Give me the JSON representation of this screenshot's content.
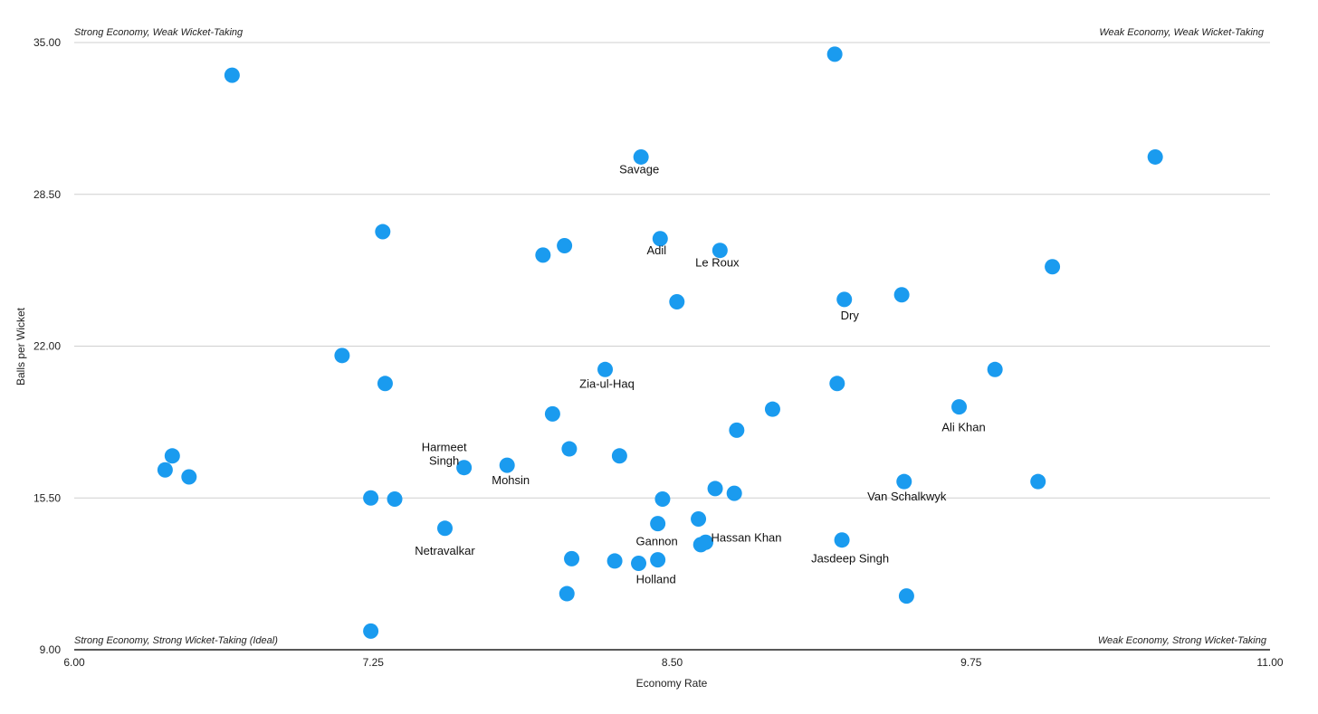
{
  "chart_data": {
    "type": "scatter",
    "title": "",
    "xlabel": "Economy Rate",
    "ylabel": "Balls per Wicket",
    "xlim": [
      6.0,
      11.0
    ],
    "ylim": [
      9.0,
      35.0
    ],
    "x_ticks": [
      "6.00",
      "7.25",
      "8.50",
      "9.75",
      "11.00"
    ],
    "y_ticks": [
      "9.00",
      "15.50",
      "22.00",
      "28.50",
      "35.00"
    ],
    "grid": "horizontal",
    "point_color": "#1a9bef",
    "quadrant_labels": {
      "top_left": "Strong Economy, Weak Wicket-Taking",
      "top_right": "Weak Economy, Weak Wicket-Taking",
      "bottom_left": "Strong Economy, Strong Wicket-Taking (Ideal)",
      "bottom_right": "Weak Economy, Strong Wicket-Taking"
    },
    "points": [
      {
        "x": 6.66,
        "y": 33.6,
        "label": ""
      },
      {
        "x": 9.18,
        "y": 34.5,
        "label": ""
      },
      {
        "x": 8.37,
        "y": 30.1,
        "label": "Savage"
      },
      {
        "x": 10.52,
        "y": 30.1,
        "label": ""
      },
      {
        "x": 7.29,
        "y": 26.9,
        "label": ""
      },
      {
        "x": 8.05,
        "y": 26.3,
        "label": ""
      },
      {
        "x": 7.96,
        "y": 25.9,
        "label": ""
      },
      {
        "x": 8.45,
        "y": 26.6,
        "label": "Adil"
      },
      {
        "x": 8.7,
        "y": 26.1,
        "label": "Le Roux"
      },
      {
        "x": 10.09,
        "y": 25.4,
        "label": ""
      },
      {
        "x": 9.46,
        "y": 24.2,
        "label": ""
      },
      {
        "x": 8.52,
        "y": 23.9,
        "label": ""
      },
      {
        "x": 9.22,
        "y": 24.0,
        "label": "Dry"
      },
      {
        "x": 7.12,
        "y": 21.6,
        "label": ""
      },
      {
        "x": 8.22,
        "y": 21.0,
        "label": "Zia-ul-Haq"
      },
      {
        "x": 9.85,
        "y": 21.0,
        "label": ""
      },
      {
        "x": 7.3,
        "y": 20.4,
        "label": ""
      },
      {
        "x": 9.19,
        "y": 20.4,
        "label": ""
      },
      {
        "x": 9.7,
        "y": 19.4,
        "label": "Ali Khan"
      },
      {
        "x": 8.92,
        "y": 19.3,
        "label": ""
      },
      {
        "x": 8.0,
        "y": 19.1,
        "label": ""
      },
      {
        "x": 8.77,
        "y": 18.4,
        "label": ""
      },
      {
        "x": 6.41,
        "y": 17.3,
        "label": ""
      },
      {
        "x": 8.07,
        "y": 17.6,
        "label": ""
      },
      {
        "x": 8.28,
        "y": 17.3,
        "label": ""
      },
      {
        "x": 6.38,
        "y": 16.7,
        "label": ""
      },
      {
        "x": 7.63,
        "y": 16.8,
        "label": "Harmeet Singh"
      },
      {
        "x": 7.81,
        "y": 16.9,
        "label": "Mohsin"
      },
      {
        "x": 6.48,
        "y": 16.4,
        "label": ""
      },
      {
        "x": 9.47,
        "y": 16.2,
        "label": "Van Schalkwyk"
      },
      {
        "x": 10.03,
        "y": 16.2,
        "label": ""
      },
      {
        "x": 8.68,
        "y": 15.9,
        "label": ""
      },
      {
        "x": 8.76,
        "y": 15.7,
        "label": ""
      },
      {
        "x": 7.24,
        "y": 15.5,
        "label": ""
      },
      {
        "x": 7.34,
        "y": 15.45,
        "label": ""
      },
      {
        "x": 8.46,
        "y": 15.45,
        "label": ""
      },
      {
        "x": 8.61,
        "y": 14.6,
        "label": ""
      },
      {
        "x": 8.44,
        "y": 14.4,
        "label": "Gannon"
      },
      {
        "x": 7.55,
        "y": 14.2,
        "label": "Netravalkar"
      },
      {
        "x": 8.64,
        "y": 13.6,
        "label": "Hassan Khan"
      },
      {
        "x": 8.62,
        "y": 13.5,
        "label": ""
      },
      {
        "x": 9.21,
        "y": 13.7,
        "label": "Jasdeep Singh"
      },
      {
        "x": 8.08,
        "y": 12.9,
        "label": ""
      },
      {
        "x": 8.26,
        "y": 12.8,
        "label": ""
      },
      {
        "x": 8.36,
        "y": 12.7,
        "label": ""
      },
      {
        "x": 8.44,
        "y": 12.85,
        "label": "Holland"
      },
      {
        "x": 8.06,
        "y": 11.4,
        "label": ""
      },
      {
        "x": 9.48,
        "y": 11.3,
        "label": ""
      },
      {
        "x": 7.24,
        "y": 9.8,
        "label": ""
      }
    ]
  }
}
